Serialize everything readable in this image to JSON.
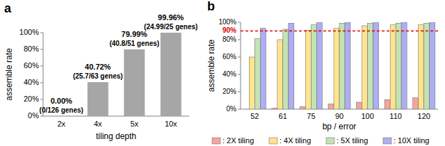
{
  "chart_data": [
    {
      "type": "bar",
      "title": "a",
      "x_label": "tiling depth",
      "y_label": "assemble rate",
      "categories": [
        "2x",
        "4x",
        "5x",
        "10x"
      ],
      "values": [
        0,
        40.72,
        79.99,
        99.96
      ],
      "value_labels": [
        "0.00%",
        "40.72%",
        "79.99%",
        "99.96%"
      ],
      "annotations": [
        "(0/126 genes)",
        "(25.7/63 genes)",
        "(40.8/51 genes)",
        "(24.99/25 genes)"
      ],
      "color": "#a6a6a6",
      "data_labels": true,
      "grid": false,
      "ylim": [
        0,
        100
      ],
      "yticks": [
        {
          "value": 0,
          "label": "0%"
        },
        {
          "value": 20,
          "label": "20%"
        },
        {
          "value": 40,
          "label": "40%"
        },
        {
          "value": 60,
          "label": "60%"
        },
        {
          "value": 80,
          "label": "80%"
        },
        {
          "value": 100,
          "label": "100%"
        }
      ]
    },
    {
      "type": "bar",
      "title": "b",
      "x_label": "bp / error",
      "y_label": "assemble rate",
      "categories": [
        "52",
        "61",
        "75",
        "90",
        "100",
        "110",
        "120"
      ],
      "series": [
        {
          "name": ": 2X tiling",
          "color": "#f4a3a3",
          "values": [
            0,
            1,
            3,
            6,
            8,
            11,
            13
          ]
        },
        {
          "name": ": 4X tiling",
          "color": "#ffe38f",
          "values": [
            60,
            80,
            91,
            93,
            96,
            97,
            97
          ]
        },
        {
          "name": ": 5X tiling",
          "color": "#c3e3b0",
          "values": [
            81,
            92,
            97,
            99,
            99,
            99,
            99
          ]
        },
        {
          "name": ": 10X tiling",
          "color": "#aeaef2",
          "values": [
            93,
            99,
            100,
            100,
            100,
            100,
            100
          ]
        }
      ],
      "legend": "bottom",
      "grid": false,
      "reference_line": {
        "value": 90,
        "label": "90%",
        "color": "#e00000",
        "line_style": "dashed"
      },
      "ylim": [
        0,
        100
      ],
      "yticks": [
        {
          "value": 0,
          "label": "0%"
        },
        {
          "value": 20,
          "label": "20%"
        },
        {
          "value": 40,
          "label": "40%"
        },
        {
          "value": 60,
          "label": "60%"
        },
        {
          "value": 80,
          "label": "80%"
        },
        {
          "value": 100,
          "label": "100%"
        }
      ]
    }
  ]
}
